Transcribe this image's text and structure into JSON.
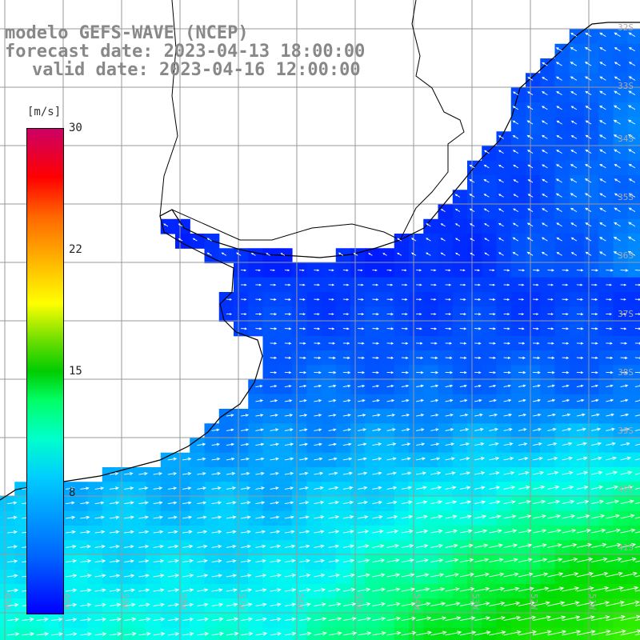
{
  "title": {
    "line1": "modelo GEFS-WAVE (NCEP)",
    "line2": "forecast date: 2023-04-13 18:00:00",
    "line3": "valid date: 2023-04-16 12:00:00"
  },
  "colorbar": {
    "unit": "[m/s]",
    "ticks": [
      "30",
      "22",
      "15",
      "8"
    ],
    "range": [
      0,
      30
    ],
    "colors": [
      "#0000ff",
      "#00ccff",
      "#00ff66",
      "#ffff00",
      "#ff0000",
      "#cc0066"
    ]
  },
  "map": {
    "lon_labels": [
      "61W",
      "60W",
      "59W",
      "58W",
      "57W",
      "56W",
      "55W",
      "54W",
      "53W",
      "52W",
      "51W"
    ],
    "lat_labels": [
      "32S",
      "33S",
      "34S",
      "35S",
      "36S",
      "37S",
      "38S",
      "39S",
      "40S",
      "41S"
    ],
    "region": "Rio de la Plata / South Atlantic",
    "field_colors": {
      "land": "#ffffff",
      "low_wind": "#0033ff",
      "mid_wind": "#00ccff",
      "high_wind": "#00ee33"
    }
  }
}
